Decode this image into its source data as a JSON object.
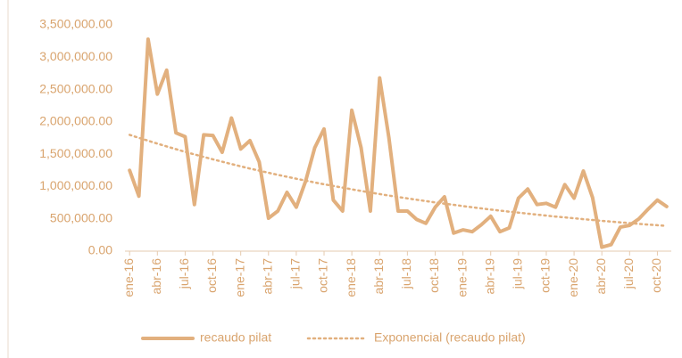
{
  "chart_data": {
    "type": "line",
    "categories": [
      "ene-16",
      null,
      null,
      "abr-16",
      null,
      null,
      "jul-16",
      null,
      null,
      "oct-16",
      null,
      null,
      "ene-17",
      null,
      null,
      "abr-17",
      null,
      null,
      "jul-17",
      null,
      null,
      "oct-17",
      null,
      null,
      "ene-18",
      null,
      null,
      "abr-18",
      null,
      null,
      "jul-18",
      null,
      null,
      "oct-18",
      null,
      null,
      "ene-19",
      null,
      null,
      "abr-19",
      null,
      null,
      "jul-19",
      null,
      null,
      "oct-19",
      null,
      null,
      "ene-20",
      null,
      null,
      "abr-20",
      null,
      null,
      "jul-20",
      null,
      null,
      "oct-20",
      null
    ],
    "series": [
      {
        "name": "recaudo pilat",
        "color": "#e2b07e",
        "style": "solid",
        "values": [
          1250000,
          850000,
          3280000,
          2430000,
          2800000,
          1830000,
          1770000,
          720000,
          1800000,
          1790000,
          1530000,
          2060000,
          1580000,
          1710000,
          1380000,
          510000,
          620000,
          910000,
          680000,
          1080000,
          1600000,
          1890000,
          790000,
          620000,
          2180000,
          1600000,
          620000,
          2680000,
          1760000,
          620000,
          620000,
          490000,
          430000,
          680000,
          840000,
          280000,
          330000,
          300000,
          410000,
          540000,
          300000,
          360000,
          820000,
          960000,
          720000,
          740000,
          680000,
          1030000,
          820000,
          1240000,
          830000,
          60000,
          100000,
          370000,
          400000,
          500000,
          650000,
          790000,
          690000
        ]
      },
      {
        "name": "Exponencial (recaudo pilat)",
        "color": "#e2b07e",
        "style": "dotted",
        "values": [
          1800000,
          1753000,
          1708000,
          1663000,
          1620000,
          1578000,
          1537000,
          1497000,
          1458000,
          1420000,
          1383000,
          1347000,
          1312000,
          1278000,
          1245000,
          1212000,
          1181000,
          1150000,
          1120000,
          1091000,
          1062000,
          1035000,
          1008000,
          982000,
          956000,
          931000,
          907000,
          883000,
          860000,
          838000,
          816000,
          795000,
          774000,
          754000,
          735000,
          716000,
          697000,
          679000,
          661000,
          644000,
          627000,
          611000,
          595000,
          580000,
          565000,
          550000,
          535000,
          522000,
          508000,
          495000,
          482000,
          469000,
          457000,
          445000,
          434000,
          422000,
          411000,
          401000,
          390000
        ]
      }
    ],
    "ylim": [
      0,
      3500000
    ],
    "yticks": [
      {
        "value": 0,
        "label": "0.00"
      },
      {
        "value": 500000,
        "label": "500,000.00"
      },
      {
        "value": 1000000,
        "label": "1,000,000.00"
      },
      {
        "value": 1500000,
        "label": "1,500,000.00"
      },
      {
        "value": 2000000,
        "label": "2,000,000.00"
      },
      {
        "value": 2500000,
        "label": "2,500,000.00"
      },
      {
        "value": 3000000,
        "label": "3,000,000.00"
      },
      {
        "value": 3500000,
        "label": "3,500,000.00"
      }
    ],
    "legend": "bottom"
  }
}
